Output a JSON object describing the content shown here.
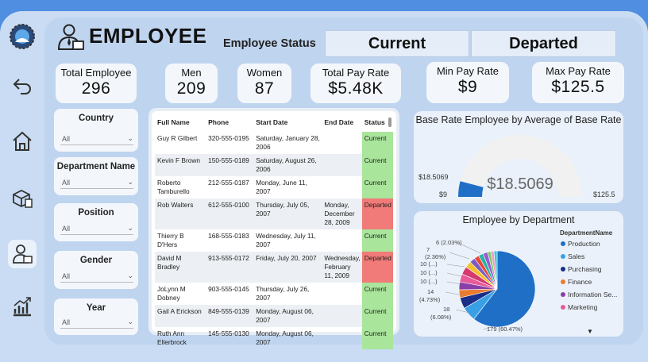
{
  "page": {
    "title": "EMPLOYEE"
  },
  "status": {
    "label": "Employee Status",
    "current": "Current",
    "departed": "Departed"
  },
  "kpis": {
    "total_employee": {
      "label": "Total Employee",
      "value": "296"
    },
    "men": {
      "label": "Men",
      "value": "209"
    },
    "women": {
      "label": "Women",
      "value": "87"
    },
    "total_pay_rate": {
      "label": "Total Pay Rate",
      "value": "$5.48K"
    },
    "min_pay_rate": {
      "label": "Min Pay Rate",
      "value": "$9"
    },
    "max_pay_rate": {
      "label": "Max Pay Rate",
      "value": "$125.5"
    }
  },
  "slicers": [
    {
      "label": "Country",
      "value": "All"
    },
    {
      "label": "Department Name",
      "value": "All"
    },
    {
      "label": "Position",
      "value": "All"
    },
    {
      "label": "Gender",
      "value": "All"
    },
    {
      "label": "Year",
      "value": "All"
    }
  ],
  "table": {
    "columns": [
      "Full Name",
      "Phone",
      "Start Date",
      "End Date",
      "Status"
    ],
    "rows": [
      [
        "Guy R Gilbert",
        "320-555-0195",
        "Saturday, January 28, 2006",
        "",
        "Current"
      ],
      [
        "Kevin F Brown",
        "150-555-0189",
        "Saturday, August 26, 2006",
        "",
        "Current"
      ],
      [
        "Roberto Tamburello",
        "212-555-0187",
        "Monday, June 11, 2007",
        "",
        "Current"
      ],
      [
        "Rob Walters",
        "612-555-0100",
        "Thursday, July 05, 2007",
        "Monday, December 28, 2009",
        "Departed"
      ],
      [
        "Thierry B D'Hers",
        "168-555-0183",
        "Wednesday, July 11, 2007",
        "",
        "Current"
      ],
      [
        "David M Bradley",
        "913-555-0172",
        "Friday, July 20, 2007",
        "Wednesday, February 11, 2009",
        "Departed"
      ],
      [
        "JoLynn M Dobney",
        "903-555-0145",
        "Thursday, July 26, 2007",
        "",
        "Current"
      ],
      [
        "Gail A Erickson",
        "849-555-0139",
        "Monday, August 06, 2007",
        "",
        "Current"
      ],
      [
        "Ruth Ann Ellerbrock",
        "145-555-0130",
        "Monday, August 06, 2007",
        "",
        "Current"
      ]
    ]
  },
  "chart_data": [
    {
      "type": "gauge",
      "title": "Base Rate Employee by Average of Base Rate",
      "min": 9,
      "max": 125.5,
      "value": 18.5069,
      "min_label": "$9",
      "max_label": "$125.5",
      "value_label": "$18.5069",
      "target_label": "$18.5069",
      "fill_color": "#1f6fc7",
      "track_color": "#f1f1f1"
    },
    {
      "type": "pie",
      "title": "Employee by Department",
      "legend_title": "DepartmentName",
      "legend": [
        {
          "name": "Production",
          "color": "#1f6fc7"
        },
        {
          "name": "Sales",
          "color": "#3aa0e6"
        },
        {
          "name": "Purchasing",
          "color": "#1a2f8a"
        },
        {
          "name": "Finance",
          "color": "#ea7a2f"
        },
        {
          "name": "Information Se...",
          "color": "#8a3fa8"
        },
        {
          "name": "Marketing",
          "color": "#e75b9a"
        }
      ],
      "slices": [
        {
          "value": 179,
          "color": "#1f6fc7"
        },
        {
          "value": 18,
          "color": "#3aa0e6"
        },
        {
          "value": 14,
          "color": "#1a2f8a"
        },
        {
          "value": 10,
          "color": "#ea7a2f"
        },
        {
          "value": 10,
          "color": "#8a3fa8"
        },
        {
          "value": 10,
          "color": "#e75b9a"
        },
        {
          "value": 10,
          "color": "#d43a6f"
        },
        {
          "value": 8,
          "color": "#f2c12e"
        },
        {
          "value": 7,
          "color": "#7a5cc2"
        },
        {
          "value": 6,
          "color": "#e8463a"
        },
        {
          "value": 6,
          "color": "#2ab3a6"
        },
        {
          "value": 6,
          "color": "#9c5bd1"
        },
        {
          "value": 4,
          "color": "#6fcf6a"
        },
        {
          "value": 4,
          "color": "#f59ac0"
        },
        {
          "value": 4,
          "color": "#46c1e0"
        }
      ],
      "labels": [
        "6 (2.03%)",
        "7",
        "(2.36%)",
        "10 (...)",
        "10 (...)",
        "10 (...)",
        "14",
        "(4.73%)",
        "18",
        "(6.08%)",
        "179 (60.47%)"
      ]
    }
  ]
}
